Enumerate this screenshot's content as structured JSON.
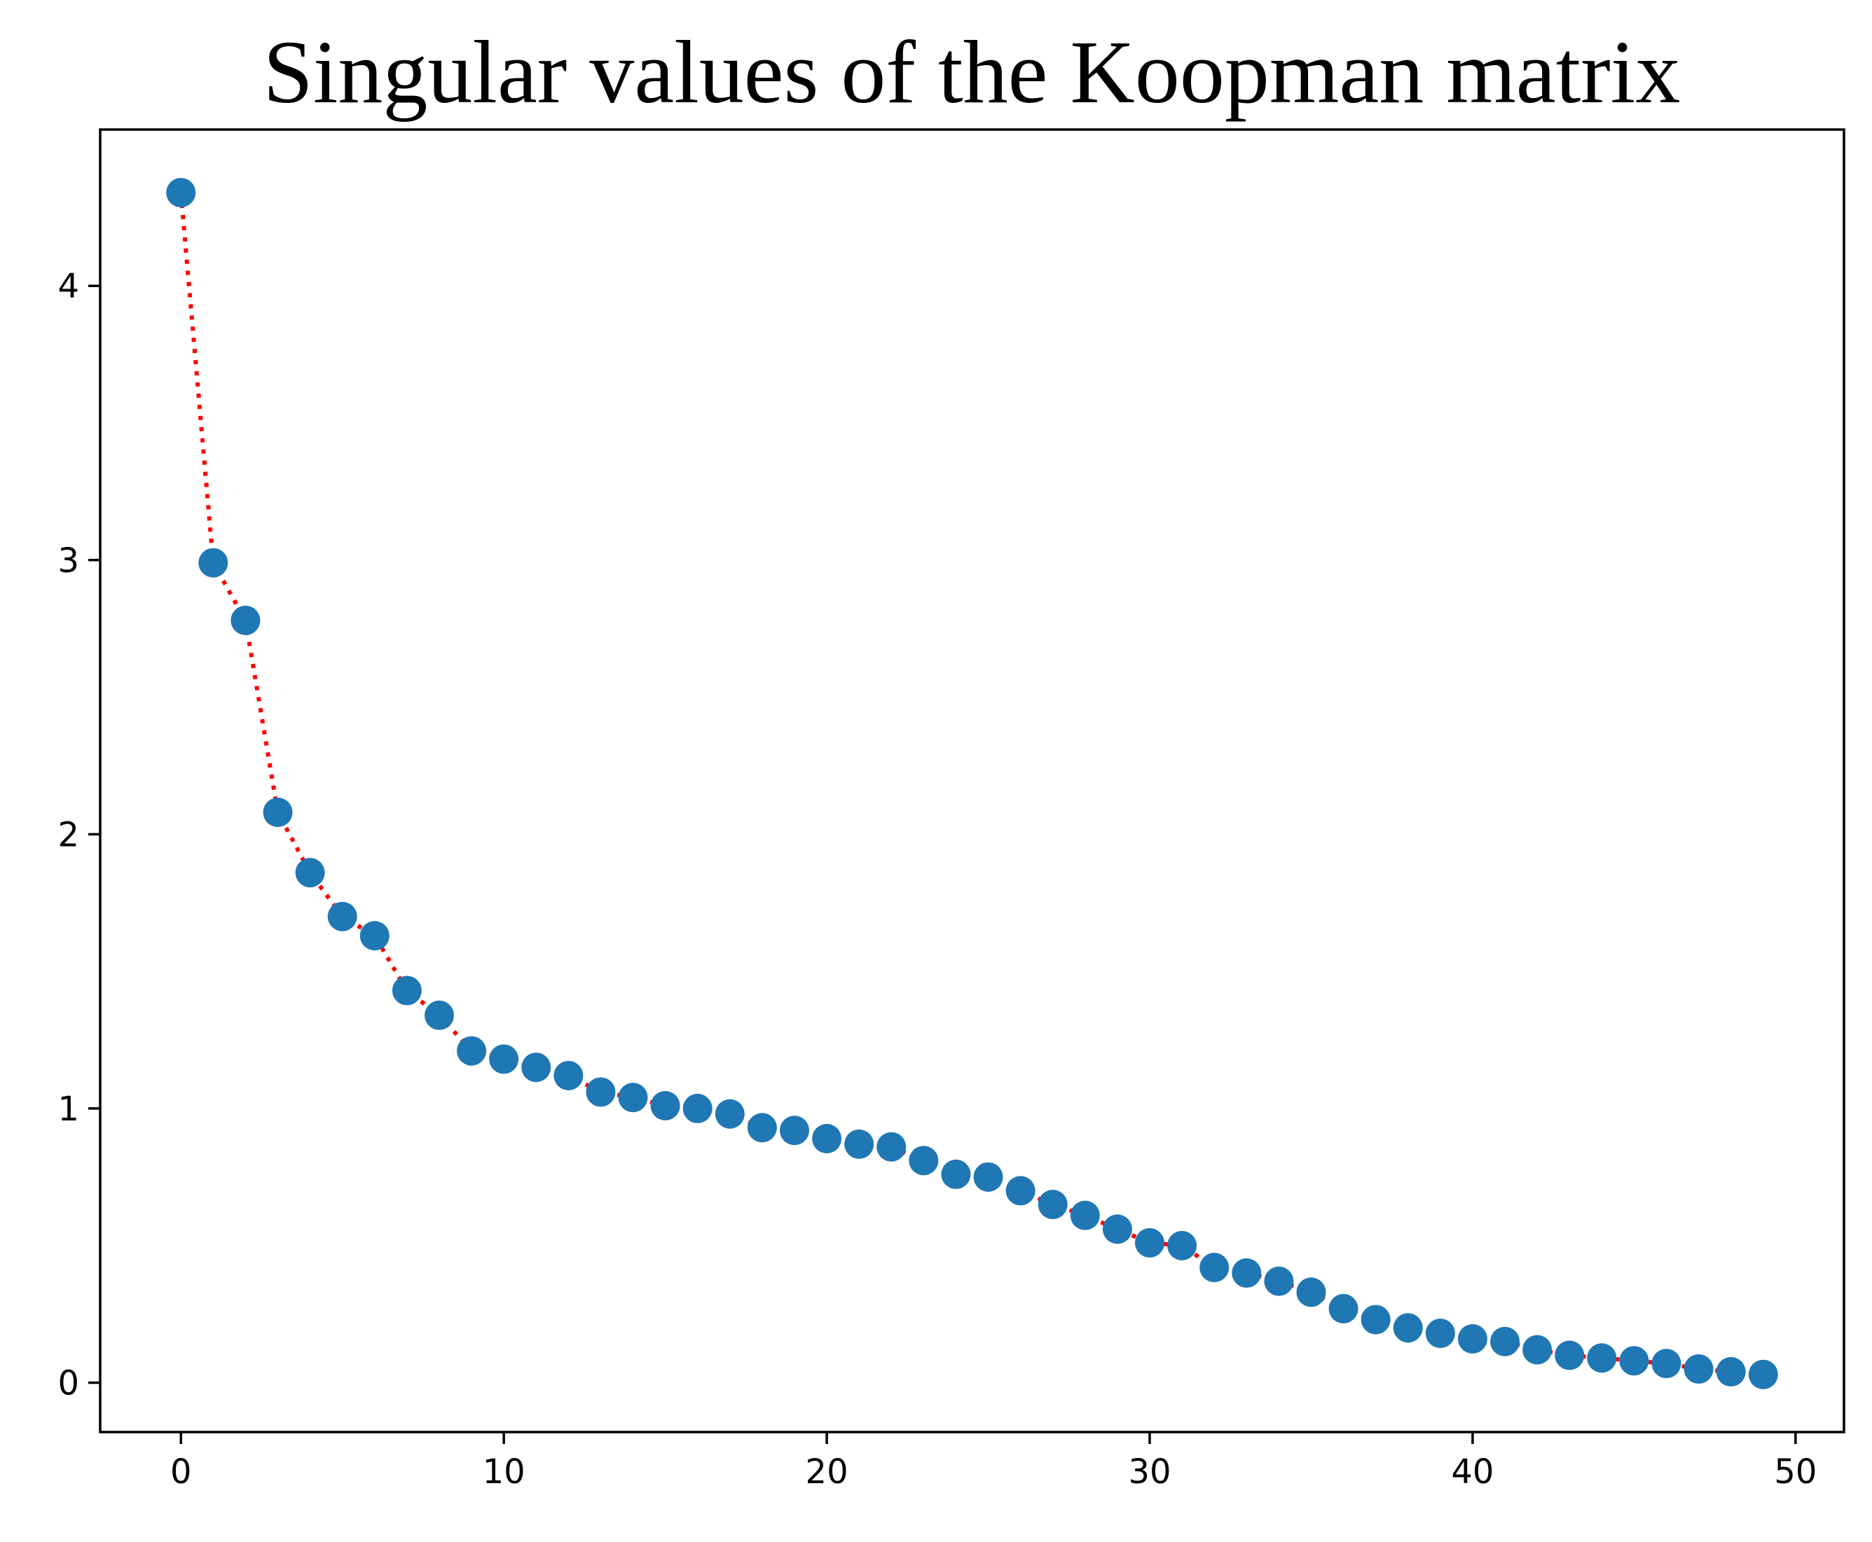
{
  "chart_data": {
    "type": "scatter",
    "title": "Singular values of the Koopman matrix",
    "xlabel": "",
    "ylabel": "",
    "xlim": [
      -2.5,
      51.5
    ],
    "ylim": [
      -0.18,
      4.57
    ],
    "x_ticks": [
      "0",
      "10",
      "20",
      "30",
      "40",
      "50"
    ],
    "y_ticks": [
      "0",
      "1",
      "2",
      "3",
      "4"
    ],
    "grid": false,
    "legend": "none",
    "x": [
      0,
      1,
      2,
      3,
      4,
      5,
      6,
      7,
      8,
      9,
      10,
      11,
      12,
      13,
      14,
      15,
      16,
      17,
      18,
      19,
      20,
      21,
      22,
      23,
      24,
      25,
      26,
      27,
      28,
      29,
      30,
      31,
      32,
      33,
      34,
      35,
      36,
      37,
      38,
      39,
      40,
      41,
      42,
      43,
      44,
      45,
      46,
      47,
      48,
      49
    ],
    "values": [
      4.34,
      2.99,
      2.78,
      2.08,
      1.86,
      1.7,
      1.63,
      1.43,
      1.34,
      1.21,
      1.18,
      1.15,
      1.12,
      1.06,
      1.04,
      1.01,
      1.0,
      0.98,
      0.93,
      0.92,
      0.89,
      0.87,
      0.86,
      0.81,
      0.76,
      0.75,
      0.7,
      0.65,
      0.61,
      0.56,
      0.51,
      0.5,
      0.42,
      0.4,
      0.37,
      0.33,
      0.27,
      0.23,
      0.2,
      0.18,
      0.16,
      0.15,
      0.12,
      0.1,
      0.09,
      0.08,
      0.07,
      0.05,
      0.04,
      0.03
    ],
    "colors": {
      "points": "#1f77b4",
      "line": "#ff0000",
      "axes": "#000000"
    }
  }
}
